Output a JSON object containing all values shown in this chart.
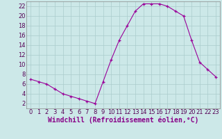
{
  "x": [
    0,
    1,
    2,
    3,
    4,
    5,
    6,
    7,
    8,
    9,
    10,
    11,
    12,
    13,
    14,
    15,
    16,
    17,
    18,
    19,
    20,
    21,
    22,
    23
  ],
  "y": [
    7,
    6.5,
    6,
    5,
    4,
    3.5,
    3,
    2.5,
    2,
    6.5,
    11,
    15,
    18,
    21,
    22.5,
    22.5,
    22.5,
    22,
    21,
    20,
    15,
    10.5,
    9,
    7.5
  ],
  "line_color": "#990099",
  "marker": "+",
  "marker_size": 3,
  "bg_color": "#cce8e8",
  "grid_color": "#aacccc",
  "xlabel": "Windchill (Refroidissement éolien,°C)",
  "xlabel_color": "#880088",
  "xlabel_fontsize": 7,
  "tick_fontsize": 6,
  "ylim": [
    1,
    23
  ],
  "xlim": [
    -0.5,
    23.5
  ],
  "yticks": [
    2,
    4,
    6,
    8,
    10,
    12,
    14,
    16,
    18,
    20,
    22
  ],
  "xticks": [
    0,
    1,
    2,
    3,
    4,
    5,
    6,
    7,
    8,
    9,
    10,
    11,
    12,
    13,
    14,
    15,
    16,
    17,
    18,
    19,
    20,
    21,
    22,
    23
  ]
}
